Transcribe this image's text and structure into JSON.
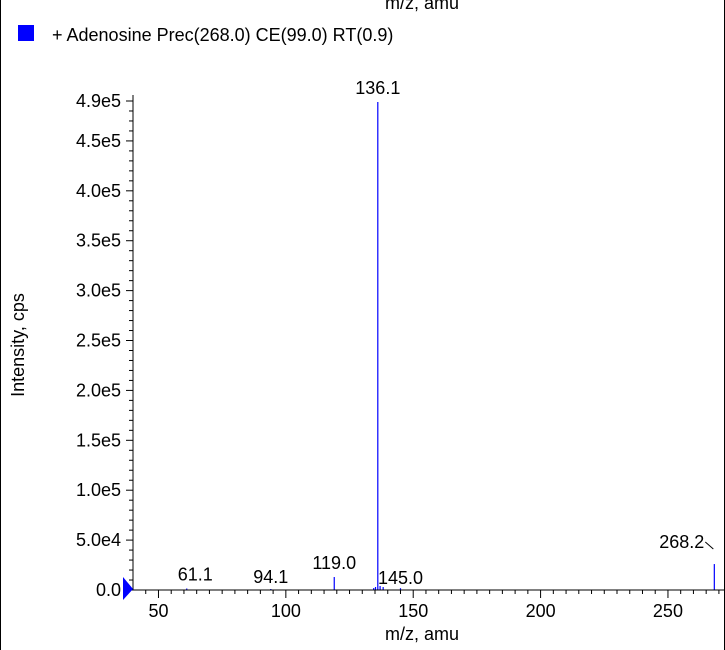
{
  "top_cut_label": "m/z, amu",
  "legend": {
    "label": "+ Adenosine  Prec(268.0) CE(99.0) RT(0.9)",
    "color": "#0000ff"
  },
  "chart_data": {
    "type": "bar",
    "title": "+ Adenosine  Prec(268.0) CE(99.0) RT(0.9)",
    "xlabel": "m/z, amu",
    "ylabel": "Intensity, cps",
    "xlim": [
      40,
      272
    ],
    "ylim": [
      0,
      490000
    ],
    "x_ticks": [
      50,
      100,
      150,
      200,
      250
    ],
    "y_ticks": [
      {
        "value": 0,
        "label": "0.0"
      },
      {
        "value": 50000,
        "label": "5.0e4"
      },
      {
        "value": 100000,
        "label": "1.0e5"
      },
      {
        "value": 150000,
        "label": "1.5e5"
      },
      {
        "value": 200000,
        "label": "2.0e5"
      },
      {
        "value": 250000,
        "label": "2.5e5"
      },
      {
        "value": 300000,
        "label": "3.0e5"
      },
      {
        "value": 350000,
        "label": "3.5e5"
      },
      {
        "value": 400000,
        "label": "4.0e5"
      },
      {
        "value": 450000,
        "label": "4.5e5"
      },
      {
        "value": 490000,
        "label": "4.9e5"
      }
    ],
    "series_color": "#0000ff",
    "peaks": [
      {
        "x": 61.1,
        "y": 1500
      },
      {
        "x": 94.1,
        "y": 1000
      },
      {
        "x": 119.0,
        "y": 13000
      },
      {
        "x": 134.5,
        "y": 2000
      },
      {
        "x": 135.2,
        "y": 3000
      },
      {
        "x": 136.1,
        "y": 489000
      },
      {
        "x": 137.0,
        "y": 4000
      },
      {
        "x": 138.2,
        "y": 3000
      },
      {
        "x": 145.0,
        "y": 1800
      },
      {
        "x": 268.2,
        "y": 26000
      }
    ],
    "annotations": [
      {
        "x": 136.1,
        "y": 489000,
        "text": "136.1"
      },
      {
        "x": 61.1,
        "y": 1500,
        "text": "61.1"
      },
      {
        "x": 94.1,
        "y": 1000,
        "text": "94.1"
      },
      {
        "x": 119.0,
        "y": 13000,
        "text": "119.0"
      },
      {
        "x": 145.0,
        "y": 1800,
        "text": "145.0"
      },
      {
        "x": 268.2,
        "y": 26000,
        "text": "268.2"
      }
    ]
  }
}
